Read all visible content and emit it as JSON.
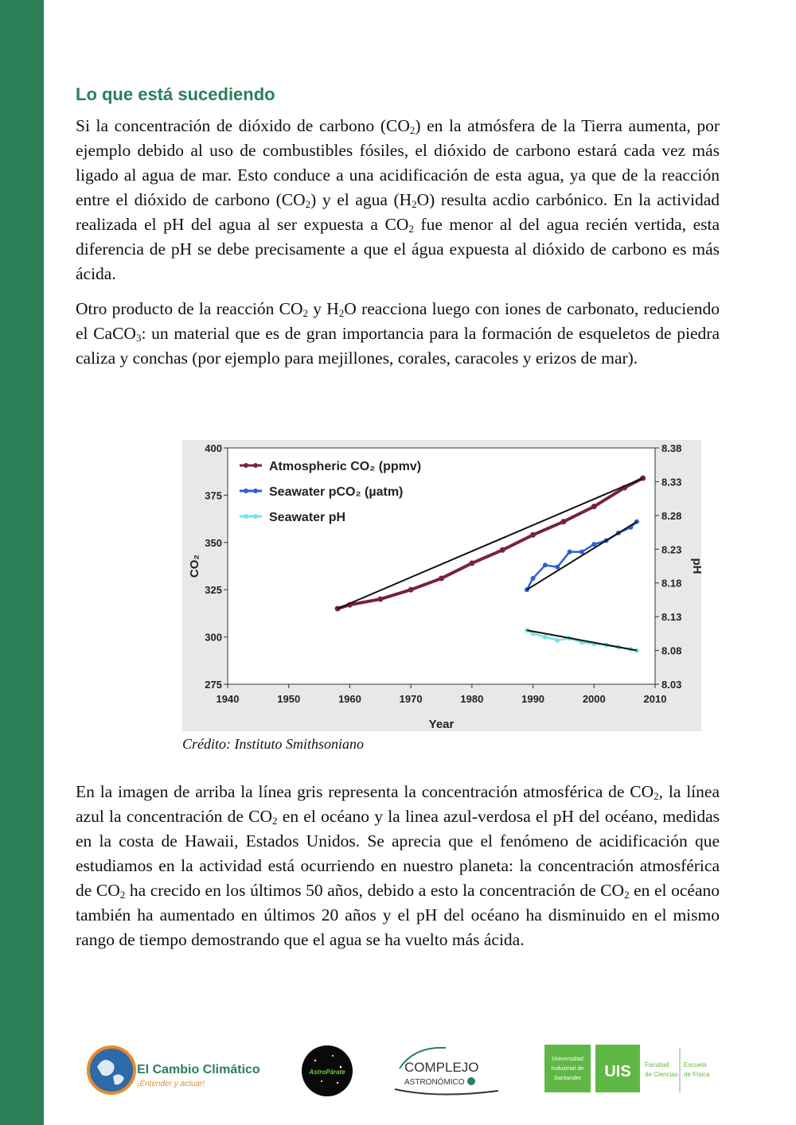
{
  "heading": "Lo que está sucediendo",
  "p1": {
    "t1": "Si la concentración de  dióxido de carbono (CO",
    "s1": "2",
    "t2": ") en la atmósfera de la Tierra aumenta, por ejemplo debido al uso de combustibles fósiles, el dióxido de carbono estará cada vez más ligado al agua de mar. Esto conduce a una acidificación de esta agua, ya que de la reacción entre el dióxido de carbono (CO",
    "s2": "2",
    "t3": ") y el agua (H",
    "s3": "2",
    "t4": "O) resulta acdio carbónico. En la actividad realizada el pH del agua al ser expuesta a CO",
    "s4": "2",
    "t5": " fue menor al del agua recién vertida, esta diferencia de pH se debe precisamente a que el água expuesta al dióxido de carbono es más ácida."
  },
  "p2": {
    "t1": "Otro producto de la reacción CO",
    "s1": "2",
    "t2": " y H",
    "s2": "2",
    "t3": "O reacciona luego con iones de carbonato, reduciendo el CaCO",
    "s3": "3",
    "t4": ": un material que es de gran importancia para la formación  de esqueletos de piedra caliza y conchas (por ejemplo para mejillones, corales, caracoles y erizos de mar)."
  },
  "caption": "Crédito: Instituto Smithsoniano",
  "p3": {
    "t1": "En la imagen de arriba la línea gris representa la concentración atmosférica de CO",
    "s1": "2",
    "t2": ", la línea azul la concentración de CO",
    "s2": "2",
    "t3": " en el océano y la linea azul-verdosa el pH del océano, medidas en la costa de Hawaii, Estados Unidos.  Se aprecia que el fenómeno de acidificación que estudiamos en la actividad está ocurriendo en nuestro planeta: la concentración atmosférica de CO",
    "s3": "2",
    "t4": " ha crecido en los últimos 50 años, debido a esto la concentración de CO",
    "s4": "2",
    "t5": " en el océano también ha aumentado en últimos 20 años y el pH del océano ha disminuido en el mismo rango de tiempo demostrando que el agua se ha vuelto más ácida."
  },
  "chart_data": {
    "type": "line",
    "xlabel": "Year",
    "ylabel": "CO₂",
    "y2label": "pH",
    "xlim": [
      1940,
      2010
    ],
    "ylim": [
      275,
      400
    ],
    "y2lim": [
      8.03,
      8.38
    ],
    "x_ticks": [
      "1940",
      "1950",
      "1960",
      "1970",
      "1980",
      "1990",
      "2000",
      "2010"
    ],
    "y_ticks": [
      "275",
      "300",
      "325",
      "350",
      "375",
      "400"
    ],
    "y2_ticks": [
      "8.03",
      "8.08",
      "8.13",
      "8.18",
      "8.23",
      "8.28",
      "8.33",
      "8.38"
    ],
    "legend_position": "top-left",
    "series": [
      {
        "name": "Atmospheric CO₂ (ppmv)",
        "axis": "left",
        "color": "#7a1f45",
        "points": [
          [
            1958,
            315
          ],
          [
            1960,
            317
          ],
          [
            1965,
            320
          ],
          [
            1970,
            325
          ],
          [
            1975,
            331
          ],
          [
            1980,
            339
          ],
          [
            1985,
            346
          ],
          [
            1990,
            354
          ],
          [
            1995,
            361
          ],
          [
            2000,
            369
          ],
          [
            2005,
            379
          ],
          [
            2008,
            384
          ]
        ]
      },
      {
        "name": "Seawater pCO₂ (µatm)",
        "axis": "left",
        "color": "#2e5fd1",
        "points": [
          [
            1989,
            325
          ],
          [
            1990,
            331
          ],
          [
            1992,
            338
          ],
          [
            1994,
            337
          ],
          [
            1996,
            345
          ],
          [
            1998,
            345
          ],
          [
            2000,
            349
          ],
          [
            2002,
            351
          ],
          [
            2004,
            355
          ],
          [
            2006,
            358
          ],
          [
            2007,
            361
          ]
        ]
      },
      {
        "name": "Seawater pH",
        "axis": "right",
        "color": "#76e3e8",
        "points": [
          [
            1989,
            8.11
          ],
          [
            1990,
            8.105
          ],
          [
            1992,
            8.1
          ],
          [
            1994,
            8.095
          ],
          [
            1996,
            8.098
          ],
          [
            1998,
            8.092
          ],
          [
            2000,
            8.09
          ],
          [
            2002,
            8.088
          ],
          [
            2004,
            8.085
          ],
          [
            2006,
            8.082
          ],
          [
            2007,
            8.08
          ]
        ]
      }
    ]
  },
  "logos": {
    "cambio_title": "El Cambio Climático",
    "cambio_sub": "¡Entender y actuar!",
    "astro": "AstroPárate",
    "complejo_1": "COMPLEJO",
    "complejo_2": "ASTRONÓMICO",
    "uis_name_1": "Universidad",
    "uis_name_2": "Industrial de",
    "uis_name_3": "Santander",
    "uis_mark": "UIS",
    "fac_1": "Facultad",
    "fac_2": "de Ciencias",
    "esc_1": "Escuela",
    "esc_2": "de Física"
  }
}
